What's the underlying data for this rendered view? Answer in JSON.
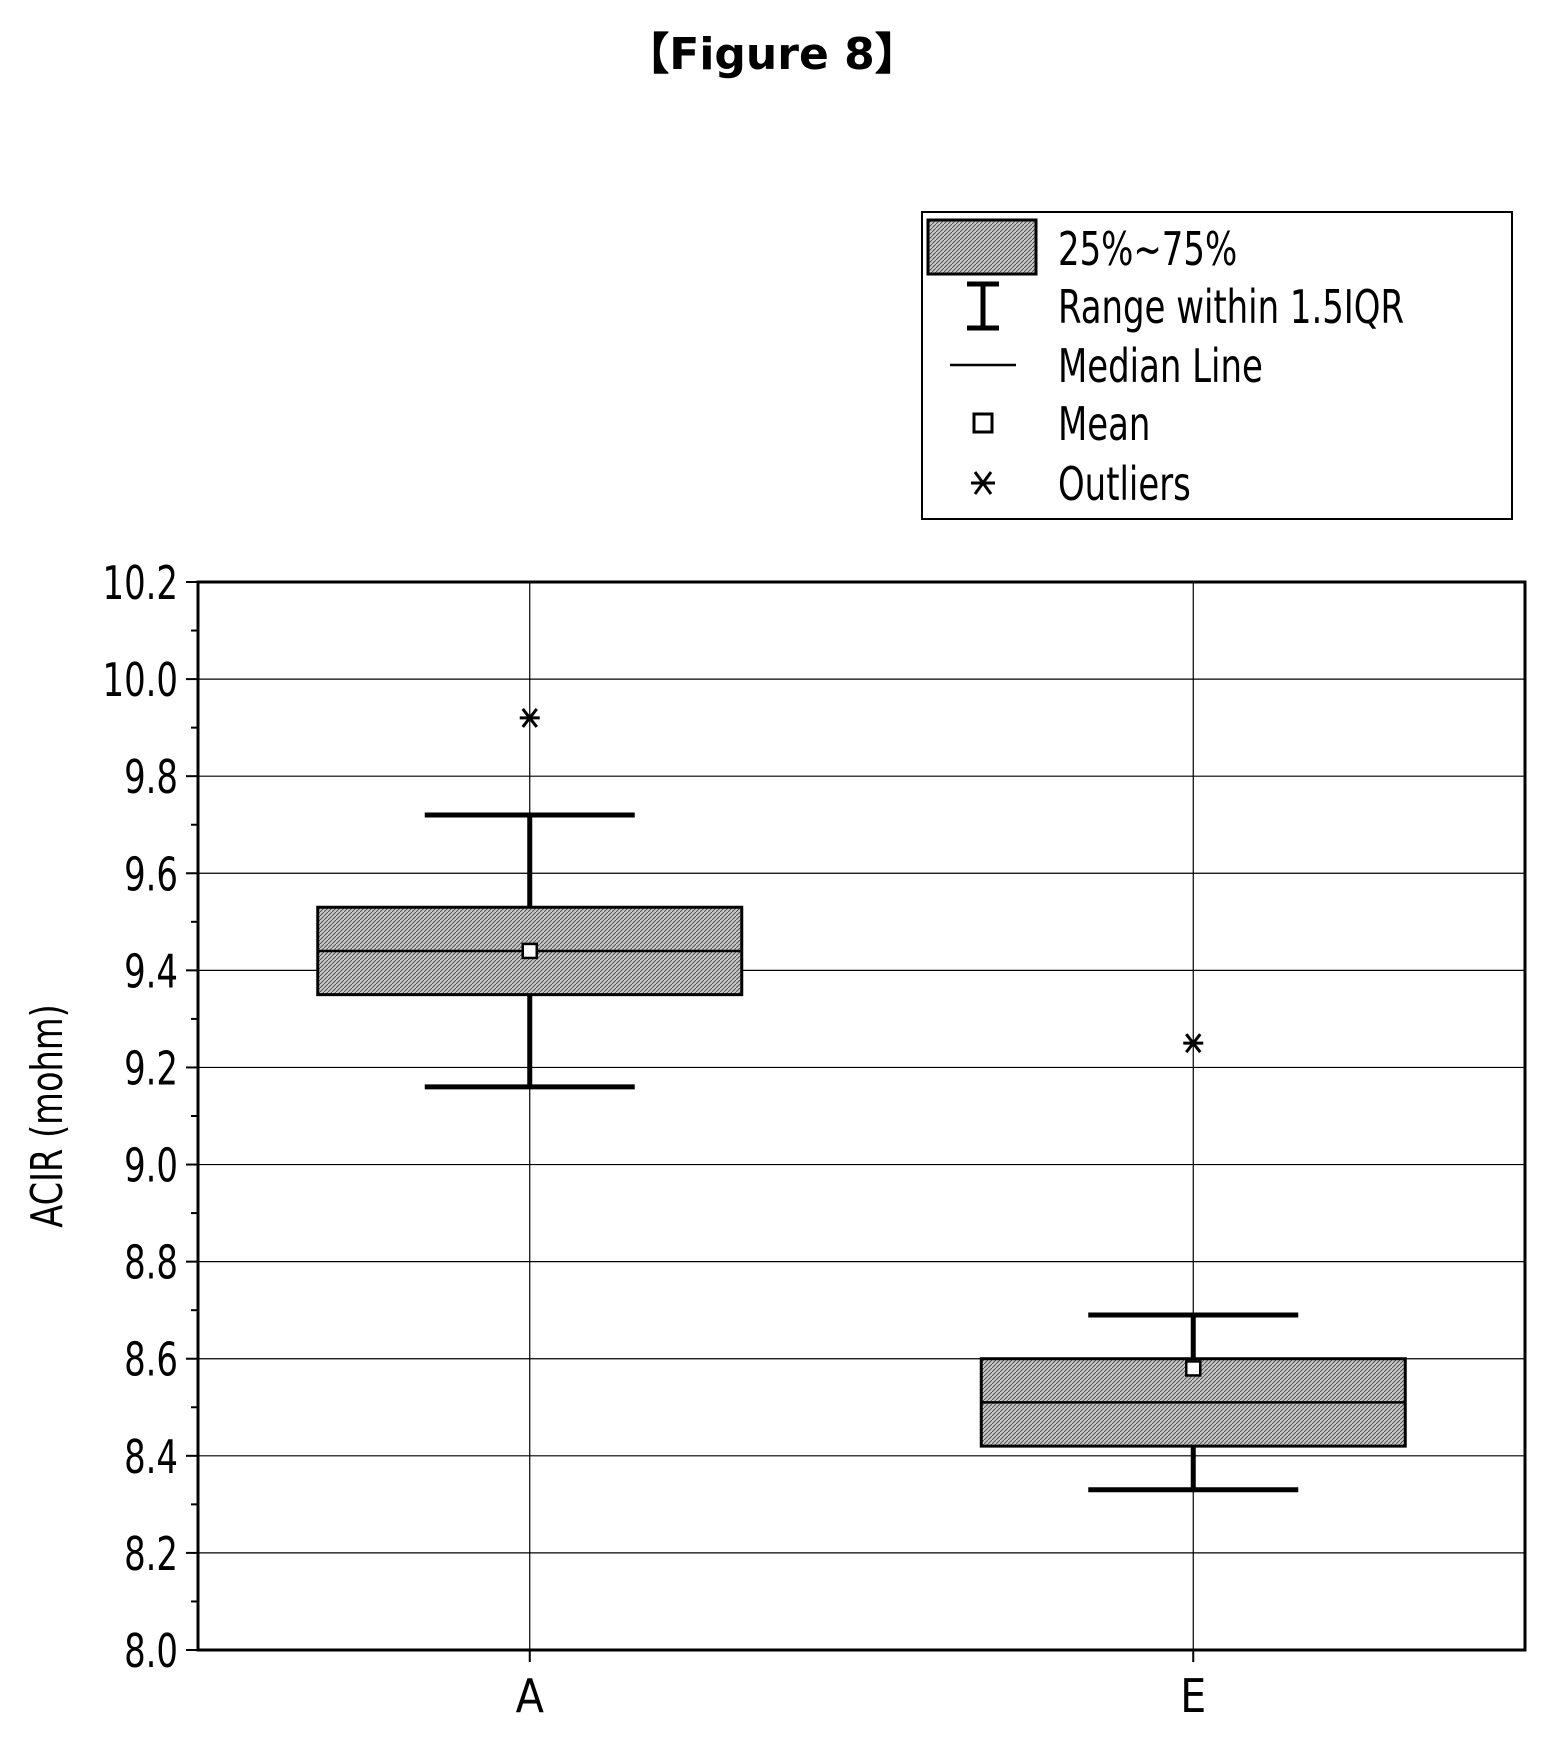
{
  "figure_label": "【Figure 8】",
  "chart_data": {
    "type": "box",
    "categories": [
      "A",
      "E"
    ],
    "ylabel": "ACIR (mohm)",
    "xlabel": "",
    "ylim": [
      8.0,
      10.2
    ],
    "yticks": [
      "8.0",
      "8.2",
      "8.4",
      "8.6",
      "8.8",
      "9.0",
      "9.2",
      "9.4",
      "9.6",
      "9.8",
      "10.0",
      "10.2"
    ],
    "grid": true,
    "legend_position": "top-right",
    "legend": [
      {
        "symbol": "box",
        "label": "25%~75%"
      },
      {
        "symbol": "whisker",
        "label": "Range within 1.5IQR"
      },
      {
        "symbol": "median",
        "label": "Median Line"
      },
      {
        "symbol": "mean",
        "label": "Mean"
      },
      {
        "symbol": "outlier",
        "label": "Outliers"
      }
    ],
    "boxes": [
      {
        "category": "A",
        "whisker_low": 9.16,
        "q1": 9.35,
        "median": 9.44,
        "mean": 9.44,
        "q3": 9.53,
        "whisker_high": 9.72,
        "outliers": [
          9.92
        ]
      },
      {
        "category": "E",
        "whisker_low": 8.33,
        "q1": 8.42,
        "median": 8.51,
        "mean": 8.58,
        "q3": 8.6,
        "whisker_high": 8.69,
        "outliers": [
          9.25
        ]
      }
    ]
  },
  "colors": {
    "axis": "#000000",
    "grid": "#000000",
    "box_fill": "#bdbdbd"
  }
}
